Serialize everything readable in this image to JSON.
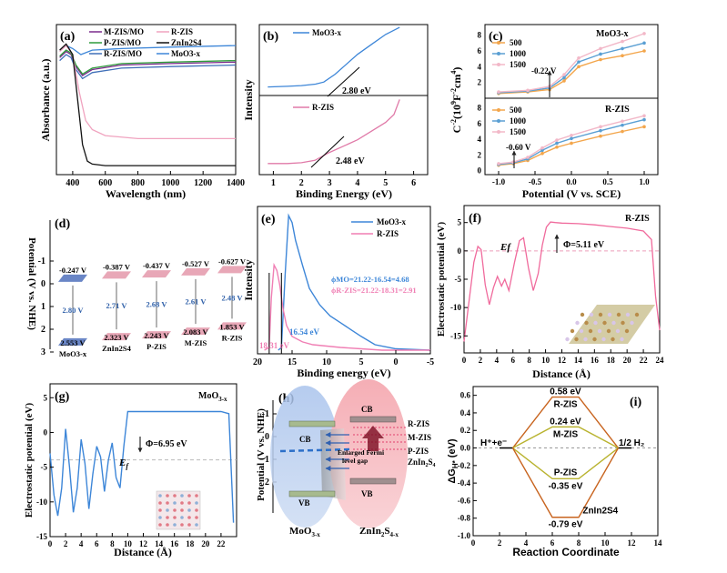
{
  "colors": {
    "mzis_mo": "#7b2a8c",
    "rzis": "#f0a3bf",
    "pzis_mo": "#2e9b3a",
    "znin2s4": "#111111",
    "rzis_mo": "#3f6fb8",
    "moo3": "#3d86d8",
    "c500": "#f3a64c",
    "c1000": "#5a9fd3",
    "c1500": "#f2b8c8",
    "vb_blue": "#6a86c6",
    "band_pink": "#e8a7b7",
    "gh_orange": "#c8641f",
    "gh_olive": "#b9b32f"
  },
  "chart_data": [
    {
      "panel": "(a)",
      "type": "line",
      "xlabel": "Wavelength (nm)",
      "ylabel": "Absorbance (a.u.)",
      "xlim": [
        300,
        1400
      ],
      "xticks": [
        "400",
        "600",
        "800",
        "1000",
        "1200",
        "1400"
      ],
      "legend": [
        "M-ZIS/MO",
        "R-ZIS",
        "P-ZIS/MO",
        "ZnIn2S4",
        "R-ZIS/MO",
        "MoO3-x"
      ],
      "series": [
        {
          "name": "M-ZIS/MO",
          "x": [
            320,
            360,
            390,
            420,
            460,
            520,
            700,
            1000,
            1400
          ],
          "y": [
            0.78,
            0.82,
            0.8,
            0.72,
            0.66,
            0.7,
            0.73,
            0.74,
            0.75
          ]
        },
        {
          "name": "P-ZIS/MO",
          "x": [
            320,
            360,
            390,
            420,
            460,
            520,
            700,
            1000,
            1400
          ],
          "y": [
            0.79,
            0.83,
            0.81,
            0.73,
            0.67,
            0.71,
            0.74,
            0.75,
            0.76
          ]
        },
        {
          "name": "R-ZIS/MO",
          "x": [
            320,
            360,
            390,
            420,
            460,
            520,
            700,
            1000,
            1400
          ],
          "y": [
            0.76,
            0.8,
            0.78,
            0.7,
            0.64,
            0.68,
            0.71,
            0.72,
            0.73
          ]
        },
        {
          "name": "MoO3-x",
          "x": [
            320,
            360,
            400,
            450,
            520,
            700,
            1000,
            1400
          ],
          "y": [
            0.83,
            0.86,
            0.84,
            0.8,
            0.83,
            0.84,
            0.85,
            0.86
          ]
        },
        {
          "name": "R-ZIS",
          "x": [
            320,
            360,
            400,
            440,
            480,
            520,
            600,
            800,
            1400
          ],
          "y": [
            0.82,
            0.86,
            0.8,
            0.55,
            0.36,
            0.3,
            0.26,
            0.24,
            0.24
          ]
        },
        {
          "name": "ZnIn2S4",
          "x": [
            320,
            360,
            400,
            430,
            460,
            490,
            520,
            600,
            1400
          ],
          "y": [
            0.83,
            0.87,
            0.8,
            0.5,
            0.2,
            0.09,
            0.07,
            0.06,
            0.06
          ]
        }
      ]
    },
    {
      "panel": "(b)",
      "type": "line",
      "xlabel": "Binding Energy (eV)",
      "ylabel": "Intensity",
      "xticks": [
        "1",
        "2",
        "3",
        "4",
        "5",
        "6"
      ],
      "subplots": [
        {
          "name": "MoO3-x",
          "annotation": "2.80 eV",
          "x": [
            0.8,
            1.5,
            2.0,
            2.5,
            2.8,
            3.2,
            3.6,
            4.0,
            4.5,
            5.0,
            5.5
          ],
          "y": [
            0.12,
            0.13,
            0.14,
            0.16,
            0.19,
            0.3,
            0.44,
            0.58,
            0.72,
            0.86,
            0.96
          ]
        },
        {
          "name": "R-ZIS",
          "annotation": "2.48 eV",
          "x": [
            0.8,
            1.5,
            2.0,
            2.48,
            3.0,
            3.5,
            4.0,
            4.5,
            5.0,
            5.3,
            5.5
          ],
          "y": [
            0.14,
            0.14,
            0.15,
            0.18,
            0.28,
            0.36,
            0.44,
            0.55,
            0.66,
            0.76,
            0.95
          ]
        }
      ]
    },
    {
      "panel": "(c)",
      "type": "line",
      "xlabel": "Potential (V vs. SCE)",
      "ylabel": "C-2 (10^9 F-2 cm4)",
      "xticks": [
        "-1.0",
        "-0.5",
        "0.0",
        "0.5",
        "1.0"
      ],
      "yticks_top": [
        "2",
        "4",
        "6",
        "8"
      ],
      "yticks_bottom": [
        "0",
        "2",
        "4",
        "6",
        "8"
      ],
      "subplots": [
        {
          "name": "MoO3-x",
          "flatband": "-0.22 V",
          "series": [
            {
              "name": "500",
              "x": [
                -1.0,
                -0.6,
                -0.3,
                -0.1,
                0.1,
                0.4,
                0.7,
                1.0
              ],
              "y": [
                0.6,
                0.8,
                1.1,
                2.2,
                4.0,
                4.9,
                5.4,
                6.0
              ]
            },
            {
              "name": "1000",
              "x": [
                -1.0,
                -0.6,
                -0.3,
                -0.1,
                0.1,
                0.4,
                0.7,
                1.0
              ],
              "y": [
                0.7,
                0.9,
                1.3,
                2.6,
                4.6,
                5.6,
                6.3,
                7.0
              ]
            },
            {
              "name": "1500",
              "x": [
                -1.0,
                -0.6,
                -0.3,
                -0.1,
                0.1,
                0.4,
                0.7,
                1.0
              ],
              "y": [
                0.8,
                1.0,
                1.5,
                3.0,
                5.1,
                6.3,
                7.2,
                8.2
              ]
            }
          ]
        },
        {
          "name": "R-ZIS",
          "flatband": "-0.60 V",
          "series": [
            {
              "name": "500",
              "x": [
                -1.0,
                -0.8,
                -0.6,
                -0.4,
                -0.2,
                0.0,
                0.4,
                0.7,
                1.0
              ],
              "y": [
                0.7,
                0.9,
                1.3,
                2.2,
                3.0,
                3.5,
                4.4,
                5.0,
                5.6
              ]
            },
            {
              "name": "1000",
              "x": [
                -1.0,
                -0.8,
                -0.6,
                -0.4,
                -0.2,
                0.0,
                0.4,
                0.7,
                1.0
              ],
              "y": [
                0.8,
                1.0,
                1.5,
                2.6,
                3.5,
                4.1,
                5.1,
                5.8,
                6.5
              ]
            },
            {
              "name": "1500",
              "x": [
                -1.0,
                -0.8,
                -0.6,
                -0.4,
                -0.2,
                0.0,
                0.4,
                0.7,
                1.0
              ],
              "y": [
                0.9,
                1.1,
                1.7,
                2.9,
                3.9,
                4.5,
                5.6,
                6.3,
                7.0
              ]
            }
          ]
        }
      ]
    },
    {
      "panel": "(d)",
      "type": "diagram",
      "ylabel": "Potential (V vs. NHE)",
      "yticks": [
        "-1",
        "0",
        "1",
        "2",
        "3"
      ],
      "columns": [
        {
          "name": "MoO3-x",
          "cb": -0.247,
          "vb": 2.553,
          "cb_label": "-0.247 V",
          "vb_label": "2.553 V",
          "gap_label": "2.80 V"
        },
        {
          "name": "ZnIn2S4",
          "cb": -0.387,
          "vb": 2.323,
          "cb_label": "-0.387 V",
          "vb_label": "2.323 V",
          "gap_label": "2.71 V"
        },
        {
          "name": "P-ZIS",
          "cb": -0.437,
          "vb": 2.243,
          "cb_label": "-0.437 V",
          "vb_label": "2.243 V",
          "gap_label": "2.68 V"
        },
        {
          "name": "M-ZIS",
          "cb": -0.527,
          "vb": 2.083,
          "cb_label": "-0.527 V",
          "vb_label": "2.083 V",
          "gap_label": "2.61 V"
        },
        {
          "name": "R-ZIS",
          "cb": -0.627,
          "vb": 1.853,
          "cb_label": "-0.627 V",
          "vb_label": "1.853 V",
          "gap_label": "2.48 V"
        }
      ]
    },
    {
      "panel": "(e)",
      "type": "line",
      "xlabel": "Binding energy (eV)",
      "ylabel": "Intensity",
      "xlim": [
        20,
        -5
      ],
      "xticks": [
        "20",
        "15",
        "10",
        "5",
        "0",
        "-5"
      ],
      "legend": [
        "MoO3-x",
        "R-ZIS"
      ],
      "phi_mo": "ϕMO=21.22-16.54=4.68",
      "phi_rzis": "ϕR-ZIS=21.22-18.31=2.91",
      "cut_mo": "16.54 eV",
      "cut_rzis": "18.31 eV",
      "series": [
        {
          "name": "MoO3-x",
          "x": [
            17.0,
            16.54,
            16.0,
            15.5,
            15.0,
            14.5,
            13.5,
            12.5,
            11.0,
            9.5,
            8.0,
            6.5,
            5.0,
            3.0,
            0.0,
            -5.0
          ],
          "y": [
            0.0,
            0.02,
            0.55,
            0.98,
            0.93,
            0.8,
            0.62,
            0.45,
            0.33,
            0.25,
            0.2,
            0.15,
            0.1,
            0.04,
            0.01,
            0.0
          ]
        },
        {
          "name": "R-ZIS",
          "x": [
            19.0,
            18.31,
            18.0,
            17.6,
            17.2,
            16.8,
            16.3,
            15.8,
            15.0,
            13.5,
            12.0,
            10.0,
            8.0,
            5.0,
            2.0,
            -5.0
          ],
          "y": [
            0.0,
            0.02,
            0.38,
            0.62,
            0.58,
            0.48,
            0.3,
            0.18,
            0.1,
            0.06,
            0.04,
            0.03,
            0.02,
            0.01,
            0.0,
            0.0
          ]
        }
      ]
    },
    {
      "panel": "(f)",
      "type": "line",
      "title": "R-ZIS",
      "xlabel": "Distance (Å)",
      "ylabel": "Electrostatic potential (eV)",
      "xlim": [
        0,
        24
      ],
      "ylim": [
        -18,
        8
      ],
      "xticks": [
        "0",
        "2",
        "4",
        "6",
        "8",
        "10",
        "12",
        "14",
        "16",
        "18",
        "20",
        "22",
        "24"
      ],
      "yticks": [
        "5",
        "0",
        "-5",
        "-10",
        "-15"
      ],
      "ef_label": "Ef",
      "phi_label": "Φ=5.11 eV",
      "x": [
        0.0,
        0.6,
        1.2,
        1.7,
        2.1,
        2.6,
        3.1,
        3.6,
        4.1,
        4.6,
        5.0,
        5.5,
        6.2,
        6.8,
        7.3,
        7.9,
        8.5,
        9.1,
        9.6,
        10.1,
        10.6,
        11.2,
        12,
        14,
        16,
        18,
        20,
        22,
        23,
        23.5,
        24
      ],
      "y": [
        -16.0,
        -9.0,
        -2.0,
        0.8,
        0.2,
        -6.0,
        -9.5,
        -6.5,
        -4.5,
        -6.2,
        -5.0,
        -7.0,
        -2.0,
        1.8,
        2.3,
        -3.0,
        -7.0,
        -4.0,
        1.0,
        4.2,
        5.1,
        5.0,
        4.9,
        4.8,
        4.6,
        4.3,
        4.0,
        3.5,
        2.0,
        -8.0,
        -14.0
      ]
    },
    {
      "panel": "(g)",
      "type": "line",
      "title": "MoO3-x",
      "xlabel": "Distance (Å)",
      "ylabel": "Electrostatic potential (eV)",
      "xlim": [
        0,
        24
      ],
      "ylim": [
        -15,
        7
      ],
      "xticks": [
        "0",
        "2",
        "4",
        "6",
        "8",
        "10",
        "12",
        "14",
        "16",
        "18",
        "20",
        "22"
      ],
      "yticks": [
        "5",
        "0",
        "-5",
        "-10",
        "-15"
      ],
      "ef_label": "Ef",
      "phi_label": "Φ=6.95 eV",
      "x": [
        0.0,
        0.5,
        1.0,
        1.5,
        2.0,
        2.5,
        3.0,
        3.5,
        4.0,
        4.5,
        5.0,
        5.5,
        6.0,
        6.5,
        7.0,
        7.5,
        8.0,
        8.5,
        9.0,
        9.5,
        10.0,
        12,
        16,
        20,
        22,
        23,
        23.6
      ],
      "y": [
        -3.0,
        -9.0,
        -12.0,
        -8.0,
        0.5,
        -5.0,
        -11.5,
        -8.0,
        -1.0,
        -4.5,
        -11.0,
        -6.0,
        -2.0,
        -3.5,
        -8.5,
        -4.0,
        -1.5,
        -6.5,
        -8.0,
        -2.0,
        3.0,
        3.0,
        3.0,
        3.0,
        3.0,
        2.7,
        -13.0
      ]
    },
    {
      "panel": "(h)",
      "type": "diagram",
      "ylabel": "Potential (V vs. NHE)",
      "yticks": [
        "-1",
        "0",
        "1",
        "2"
      ],
      "left_name": "MoO3-x",
      "right_name": "ZnIn2S4-x",
      "cb_label": "CB",
      "vb_label": "VB",
      "list_labels": [
        "R-ZIS",
        "M-ZIS",
        "P-ZIS",
        "ZnIn2S4"
      ],
      "arrow_label": "Enlarged Fermi level gap"
    },
    {
      "panel": "(i)",
      "type": "line",
      "xlabel": "Reaction Coordinate",
      "ylabel": "ΔGH* (eV)",
      "xlim": [
        0,
        14
      ],
      "ylim": [
        -1.0,
        0.6
      ],
      "xticks": [
        "0",
        "2",
        "4",
        "6",
        "8",
        "10",
        "12",
        "14"
      ],
      "yticks": [
        "0.6",
        "0.4",
        "0.2",
        "0.0",
        "-0.2",
        "-0.4",
        "-0.6",
        "-0.8",
        "-1.0"
      ],
      "left_state": "H⁺+e⁻",
      "right_state": "1/2 H₂",
      "series": [
        {
          "name": "R-ZIS",
          "value": 0.58,
          "value_label": "0.58 eV"
        },
        {
          "name": "M-ZIS",
          "value": 0.24,
          "value_label": "0.24 eV"
        },
        {
          "name": "P-ZIS",
          "value": -0.35,
          "value_label": "-0.35 eV"
        },
        {
          "name": "ZnIn2S4",
          "value": -0.79,
          "value_label": "-0.79 eV"
        }
      ]
    }
  ],
  "labels": {
    "a_ylabel": "Absorbance (a.u.)",
    "a_xlabel": "Wavelength (nm)",
    "b_ylabel": "Intensity",
    "b_xlabel": "Binding Energy (eV)",
    "c_xlabel": "Potential (V vs. SCE)",
    "d_ylabel": "Potential (V vs. NHE)",
    "e_ylabel": "Intensity",
    "e_xlabel": "Binding energy (eV)",
    "f_ylabel": "Electrostatic potential (eV)",
    "f_xlabel": "Distance (Å)",
    "g_ylabel": "Electrostatic potential (eV)",
    "g_xlabel": "Distance (Å)",
    "h_ylabel": "Potential (V vs. NHE)",
    "i_xlabel": "Reaction Coordinate"
  },
  "panel_tags": [
    "(a)",
    "(b)",
    "(c)",
    "(d)",
    "(e)",
    "(f)",
    "(g)",
    "(h)",
    "(i)"
  ]
}
